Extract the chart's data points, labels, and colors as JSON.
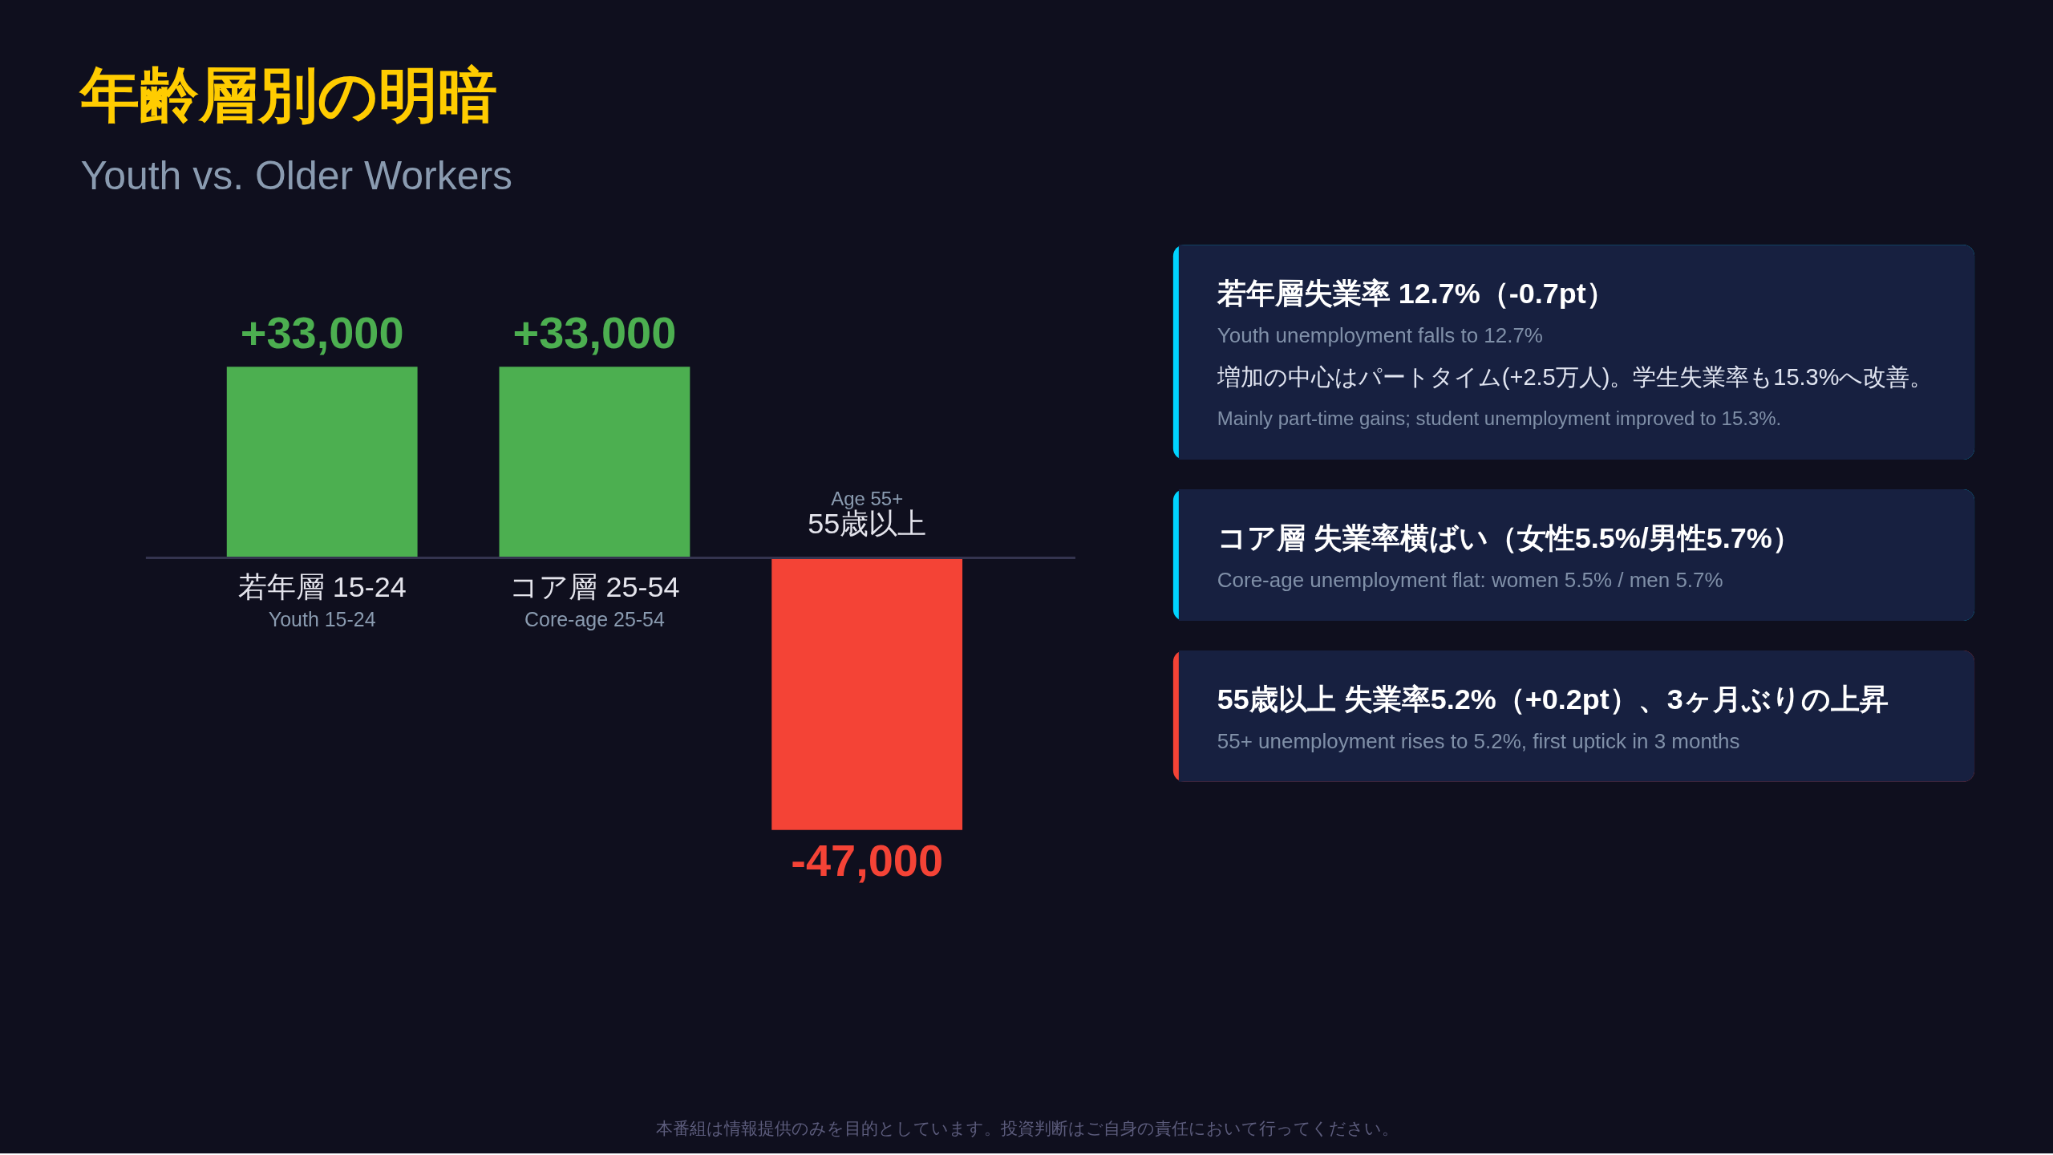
{
  "chart_data": [
    {
      "type": "bar",
      "title": "年齢層別の明暗",
      "subtitle": "Youth vs. Older Workers",
      "categories": [
        "若年層 15-24",
        "コア層 25-54",
        "55歳以上"
      ],
      "values": [
        33000,
        33000,
        -47000
      ],
      "colors": [
        "#4caf50",
        "#4caf50",
        "#f44336"
      ],
      "value_labels": [
        "+33,000",
        "+33,000",
        "-47,000"
      ],
      "annotations": [
        "Youth 15-24",
        "Core-age 25-54",
        "Age 55+",
        "本番組は情報提供のみを目的としています。投資判断はご自身の責任において行ってください。"
      ]
    },
    {
      "type": "other",
      "title": "若年層失業率 12.7%（-0.7pt）",
      "subtitle": "Youth unemployment falls to 12.7%",
      "annotations": [
        "増加の中心はパートタイム(+2.5万人)。学生失業率も15.3%へ改善。",
        "Mainly part-time gains; student unemployment improved to 15.3%."
      ],
      "color": "#00d4ff"
    },
    {
      "type": "other",
      "title": "コア層 失業率横ばい（女性5.5%/男性5.7%）",
      "subtitle": "Core-age unemployment flat: women 5.5% / men 5.7%",
      "color": "#00d4ff"
    },
    {
      "type": "other",
      "title": "55歳以上 失業率5.2%（+0.2pt）、3ヶ月ぶりの上昇",
      "subtitle": "55+ unemployment rises to 5.2%, first uptick in 3 months",
      "color": "#f44336"
    }
  ]
}
